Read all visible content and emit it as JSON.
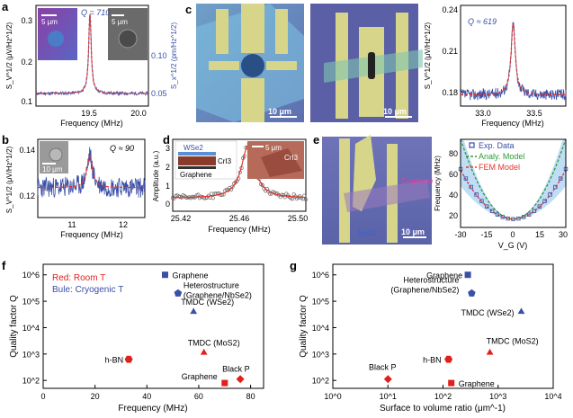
{
  "panel_letters": [
    "a",
    "b",
    "c",
    "d",
    "e",
    "f",
    "g"
  ],
  "colors": {
    "blue": "#3a4fa6",
    "red": "#e0201c",
    "fit": "#e8322b",
    "panel_text": "#000000"
  },
  "chart_data": [
    {
      "id": "a",
      "type": "line",
      "xlabel": "Frequency (MHz)",
      "ylabel": "S_V^1/2 (μV/Hz^1/2)",
      "y2label": "S_x^1/2 (pm/Hz^1/2)",
      "xticks": [
        "19.5",
        "20.0"
      ],
      "yticks": [
        "0.1",
        "0.2",
        "0.3"
      ],
      "y2ticks": [
        "0.05",
        "0.10"
      ],
      "xlim": [
        19.1,
        20.1
      ],
      "ylim": [
        0.09,
        0.33
      ],
      "annotation": "Q = 710",
      "inset_scalebars": [
        "5 μm",
        "5 μm"
      ],
      "peak": {
        "f0": 19.58,
        "Q": 710,
        "base": 0.12,
        "amp": 0.19
      }
    },
    {
      "id": "b",
      "type": "line",
      "xlabel": "Frequency (MHz)",
      "ylabel": "S_V^1/2 (μV/Hz^1/2)",
      "xticks": [
        "11",
        "12"
      ],
      "yticks": [
        "0.12",
        "0.14"
      ],
      "xlim": [
        10.3,
        12.4
      ],
      "ylim": [
        0.107,
        0.141
      ],
      "annotation": "Q ≈ 90",
      "inset_scalebars": [
        "10 μm"
      ],
      "peak": {
        "f0": 11.32,
        "Q": 90,
        "base": 0.12,
        "amp": 0.014
      }
    },
    {
      "id": "c",
      "type": "line",
      "xlabel": "Frequency (MHz)",
      "ylabel": "S_V^1/2 (μV/Hz^1/2)",
      "xticks": [
        "33.0",
        "33.5"
      ],
      "yticks": [
        "0.18",
        "0.21",
        "0.24"
      ],
      "xlim": [
        32.7,
        33.8
      ],
      "ylim": [
        0.17,
        0.242
      ],
      "annotation": "Q ≈ 619",
      "image_scalebars": [
        "10 μm",
        "10 μm"
      ],
      "peak": {
        "f0": 33.25,
        "Q": 619,
        "base": 0.178,
        "amp": 0.051
      }
    },
    {
      "id": "d",
      "type": "scatter",
      "xlabel": "Frequency (MHz)",
      "ylabel": "Amplitude (a.u.)",
      "xticks": [
        "25.42",
        "25.46",
        "25.50"
      ],
      "yticks": [
        "0",
        "1",
        "2",
        "3"
      ],
      "xlim": [
        25.415,
        25.505
      ],
      "ylim": [
        -0.3,
        3.5
      ],
      "inset_labels": [
        "WSe2",
        "CrI3",
        "Graphene",
        "CrI3"
      ],
      "inset_scalebars": [
        "5 μm"
      ],
      "peak": {
        "f0": 25.466,
        "gamma": 0.0055,
        "base": 0.38,
        "amp": 2.8
      }
    },
    {
      "id": "e",
      "type": "line",
      "xlabel": "V_G (V)",
      "ylabel": "Frequency (MHz)",
      "xticks": [
        "-30",
        "-15",
        "0",
        "15",
        "30"
      ],
      "yticks": [
        "20",
        "40",
        "60",
        "80"
      ],
      "xlim": [
        -30,
        30
      ],
      "ylim": [
        12,
        96
      ],
      "legend": [
        "Exp. Data",
        "Analy. Model",
        "FEM Model"
      ],
      "legend_position": "top",
      "image_labels": [
        "Graphene",
        "MoS2"
      ],
      "image_scalebars": [
        "10 μm"
      ],
      "curve": {
        "f0": 20,
        "k_red": 0.052,
        "k_green": 0.085,
        "k_band_lo": 0.035,
        "k_band_hi": 0.095
      }
    },
    {
      "id": "f",
      "type": "scatter",
      "xlabel": "Frequency (MHz)",
      "ylabel": "Quality factor Q",
      "xticks": [
        "0",
        "20",
        "40",
        "60",
        "80"
      ],
      "yticks": [
        "10^2",
        "10^3",
        "10^4",
        "10^5",
        "10^6"
      ],
      "xlim": [
        0,
        85
      ],
      "ylim_log10": [
        1.7,
        6.4
      ],
      "legend_text": [
        "Red: Room T",
        "Bule: Cryogenic T"
      ],
      "points": [
        {
          "label": "Graphene",
          "x": 47,
          "logy": 6.0,
          "shape": "square",
          "temp": "cryogenic"
        },
        {
          "label": "Heterostructure (Graphene/NbSe2)",
          "x": 52,
          "logy": 5.3,
          "shape": "pentagon",
          "temp": "cryogenic"
        },
        {
          "label": "TMDC (WSe2)",
          "x": 58,
          "logy": 4.6,
          "shape": "triangle",
          "temp": "cryogenic"
        },
        {
          "label": "TMDC (MoS2)",
          "x": 62,
          "logy": 3.05,
          "shape": "triangle",
          "temp": "room"
        },
        {
          "label": "h-BN",
          "x": 33,
          "logy": 2.8,
          "shape": "hexagon",
          "temp": "room"
        },
        {
          "label": "Black P",
          "x": 76,
          "logy": 2.05,
          "shape": "diamond",
          "temp": "room"
        },
        {
          "label": "Graphene",
          "x": 70,
          "logy": 1.9,
          "shape": "square",
          "temp": "room"
        }
      ]
    },
    {
      "id": "g",
      "type": "scatter",
      "xlabel": "Surface to volume ratio (μm^-1)",
      "ylabel": "Quality factor Q",
      "xticks": [
        "10^0",
        "10^1",
        "10^2",
        "10^3",
        "10^4"
      ],
      "yticks": [
        "10^2",
        "10^3",
        "10^4",
        "10^5",
        "10^6"
      ],
      "xlim_log10": [
        0,
        4
      ],
      "ylim_log10": [
        1.7,
        6.4
      ],
      "points": [
        {
          "label": "Graphene",
          "logx": 2.45,
          "logy": 6.0,
          "shape": "square",
          "temp": "cryogenic"
        },
        {
          "label": "Heterostructure (Graphene/NbSe2)",
          "logx": 2.52,
          "logy": 5.3,
          "shape": "pentagon",
          "temp": "cryogenic"
        },
        {
          "label": "TMDC (WSe2)",
          "logx": 3.42,
          "logy": 4.6,
          "shape": "triangle",
          "temp": "cryogenic"
        },
        {
          "label": "TMDC (MoS2)",
          "logx": 2.85,
          "logy": 3.05,
          "shape": "triangle",
          "temp": "room"
        },
        {
          "label": "h-BN",
          "logx": 2.1,
          "logy": 2.8,
          "shape": "hexagon",
          "temp": "room"
        },
        {
          "label": "Black P",
          "logx": 1.0,
          "logy": 2.05,
          "shape": "diamond",
          "temp": "room"
        },
        {
          "label": "Graphene",
          "logx": 2.15,
          "logy": 1.9,
          "shape": "square",
          "temp": "room"
        }
      ]
    }
  ]
}
